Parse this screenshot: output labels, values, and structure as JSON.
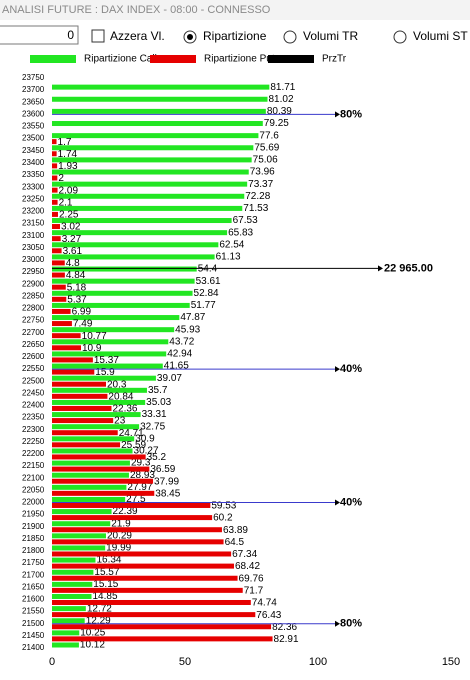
{
  "window_title": "ANALISI FUTURE : DAX INDEX - 08:00 - CONNESSO",
  "controls": {
    "input": "0",
    "checkbox": "Azzera Vl.",
    "radios": [
      "Ripartizione",
      "Volumi TR",
      "Volumi ST"
    ],
    "selected": 0
  },
  "chart_data": {
    "type": "hbar",
    "categories": [
      "23750",
      "23700",
      "23650",
      "23600",
      "23550",
      "23500",
      "23450",
      "23400",
      "23350",
      "23300",
      "23250",
      "23200",
      "23150",
      "23100",
      "23050",
      "23000",
      "22950",
      "22900",
      "22850",
      "22800",
      "22750",
      "22700",
      "22650",
      "22600",
      "22550",
      "22500",
      "22450",
      "22400",
      "22350",
      "22300",
      "22250",
      "22200",
      "22150",
      "22100",
      "22050",
      "22000",
      "21950",
      "21900",
      "21850",
      "21800",
      "21750",
      "21700",
      "21650",
      "21600",
      "21550",
      "21500",
      "21450",
      "21400"
    ],
    "series": [
      {
        "name": "Ripartizione Call",
        "color": "#22e622",
        "values": [
          null,
          81.71,
          81.02,
          80.39,
          79.25,
          77.6,
          75.69,
          75.06,
          73.96,
          73.37,
          72.28,
          71.53,
          67.53,
          65.83,
          62.54,
          61.13,
          54.4,
          53.61,
          52.84,
          51.77,
          47.87,
          45.93,
          43.72,
          42.94,
          41.65,
          39.07,
          35.7,
          35.03,
          33.31,
          32.75,
          30.9,
          30.27,
          29.3,
          28.93,
          27.97,
          27.5,
          22.39,
          21.9,
          20.29,
          19.99,
          16.34,
          15.57,
          15.15,
          14.85,
          12.72,
          12.29,
          10.25,
          10.12
        ]
      },
      {
        "name": "Ripartizione Put",
        "color": "#e60000",
        "values": [
          null,
          null,
          null,
          null,
          null,
          1.7,
          1.74,
          1.93,
          2,
          2.09,
          2.1,
          2.25,
          3.02,
          3.27,
          3.61,
          4.8,
          4.84,
          5.18,
          5.37,
          6.99,
          7.49,
          10.77,
          10.9,
          15.37,
          15.9,
          20.3,
          20.84,
          22.36,
          23,
          24.71,
          25.59,
          35.2,
          36.59,
          37.99,
          38.45,
          59.53,
          60.2,
          63.89,
          64.5,
          67.34,
          68.42,
          69.76,
          71.7,
          74.74,
          76.43,
          82.36,
          82.91,
          null
        ]
      }
    ],
    "price_line": {
      "name": "PrzTr",
      "color": "#000000",
      "value": 22965,
      "value_label": "22 965.00"
    },
    "annotations": [
      {
        "level": 23600,
        "label": "80%"
      },
      {
        "level": 22550,
        "label": "40%"
      },
      {
        "level": 22000,
        "label": "40%"
      },
      {
        "level": 21500,
        "label": "80%"
      }
    ],
    "annotation_color": "#3a3acc",
    "xlim": [
      0,
      150
    ],
    "xticks": [
      0,
      50,
      100,
      150
    ]
  }
}
